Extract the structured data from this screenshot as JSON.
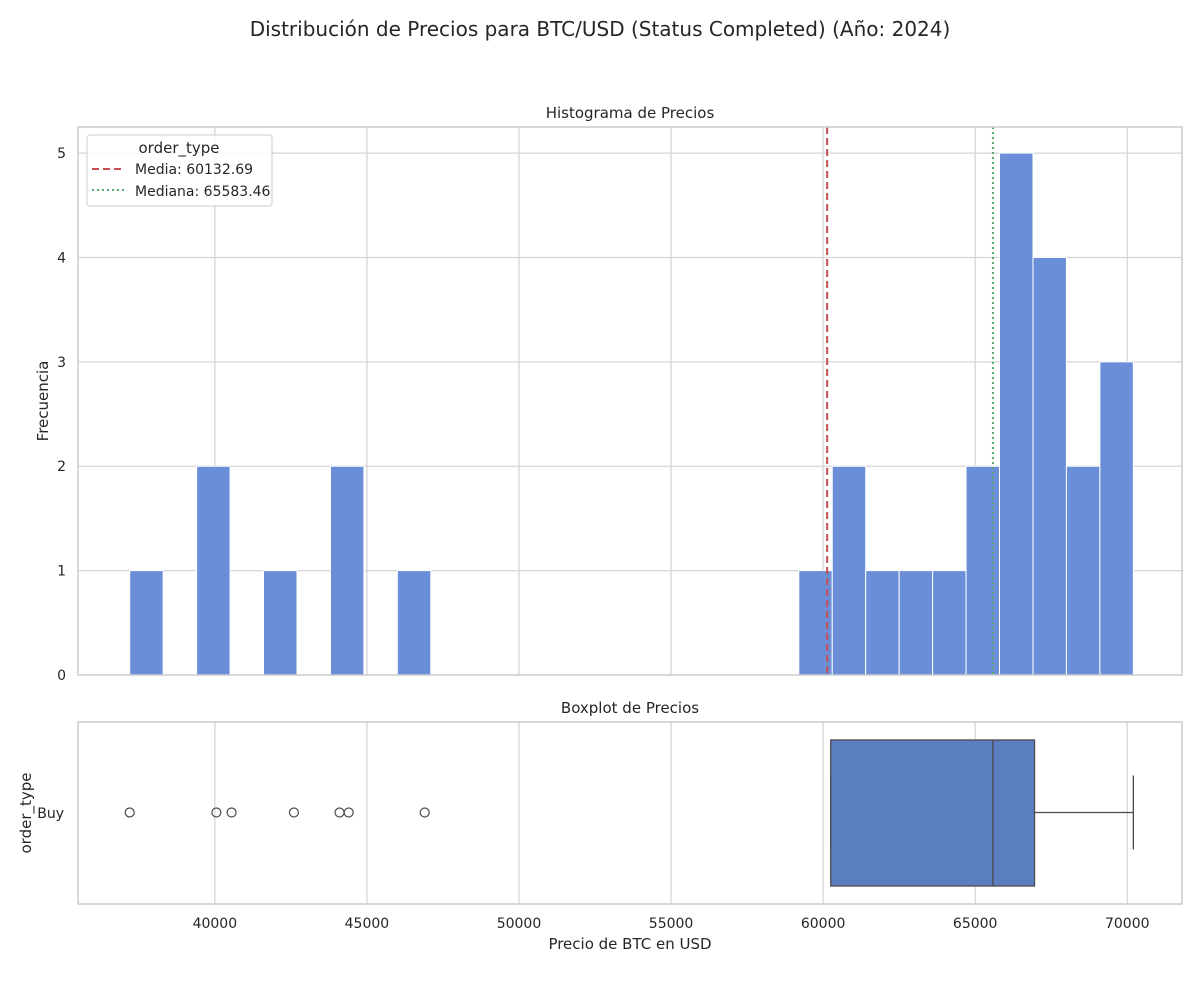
{
  "figure_title": "Distribución de Precios para BTC/USD (Status Completed) (Año: 2024)",
  "chart_data": [
    {
      "type": "histogram",
      "title": "Histograma de Precios",
      "xlabel": "",
      "ylabel": "Frecuencia",
      "xlim": [
        35500,
        71800
      ],
      "ylim": [
        0,
        5.25
      ],
      "yticks": [
        0,
        1,
        2,
        3,
        4,
        5
      ],
      "grid": true,
      "bar_color": "#6a8fd8",
      "bins": [
        {
          "start": 37200,
          "end": 38300,
          "count": 1
        },
        {
          "start": 38300,
          "end": 39400,
          "count": 0
        },
        {
          "start": 39400,
          "end": 40500,
          "count": 2
        },
        {
          "start": 40500,
          "end": 41600,
          "count": 0
        },
        {
          "start": 41600,
          "end": 42700,
          "count": 1
        },
        {
          "start": 42700,
          "end": 43800,
          "count": 0
        },
        {
          "start": 43800,
          "end": 44900,
          "count": 2
        },
        {
          "start": 44900,
          "end": 46000,
          "count": 0
        },
        {
          "start": 46000,
          "end": 47100,
          "count": 1
        },
        {
          "start": 59200,
          "end": 60300,
          "count": 1
        },
        {
          "start": 60300,
          "end": 61400,
          "count": 2
        },
        {
          "start": 61400,
          "end": 62500,
          "count": 1
        },
        {
          "start": 62500,
          "end": 63600,
          "count": 1
        },
        {
          "start": 63600,
          "end": 64700,
          "count": 1
        },
        {
          "start": 64700,
          "end": 65800,
          "count": 2
        },
        {
          "start": 65800,
          "end": 66900,
          "count": 5
        },
        {
          "start": 66900,
          "end": 68000,
          "count": 4
        },
        {
          "start": 68000,
          "end": 69100,
          "count": 2
        },
        {
          "start": 69100,
          "end": 70200,
          "count": 3
        }
      ],
      "reference_lines": [
        {
          "label": "Media: 60132.69",
          "value": 60132.69,
          "color": "#c44e52",
          "style": "dashed"
        },
        {
          "label": "Mediana: 65583.46",
          "value": 65583.46,
          "color": "#55a868",
          "style": "dotted"
        }
      ],
      "legend": {
        "title": "order_type",
        "position": "top-left"
      }
    },
    {
      "type": "boxplot",
      "title": "Boxplot de Precios",
      "xlabel": "Precio de BTC en USD",
      "ylabel": "order_type",
      "category": "Buy",
      "xlim": [
        35500,
        71800
      ],
      "xticks": [
        40000,
        45000,
        50000,
        55000,
        60000,
        65000,
        70000
      ],
      "box_color": "#5a7ec0",
      "whisker_low": 60250,
      "q1": 60250,
      "median": 65583.46,
      "q3": 66950,
      "whisker_high": 70200,
      "outliers": [
        37200,
        40050,
        40550,
        42600,
        44100,
        44400,
        46900
      ]
    }
  ]
}
